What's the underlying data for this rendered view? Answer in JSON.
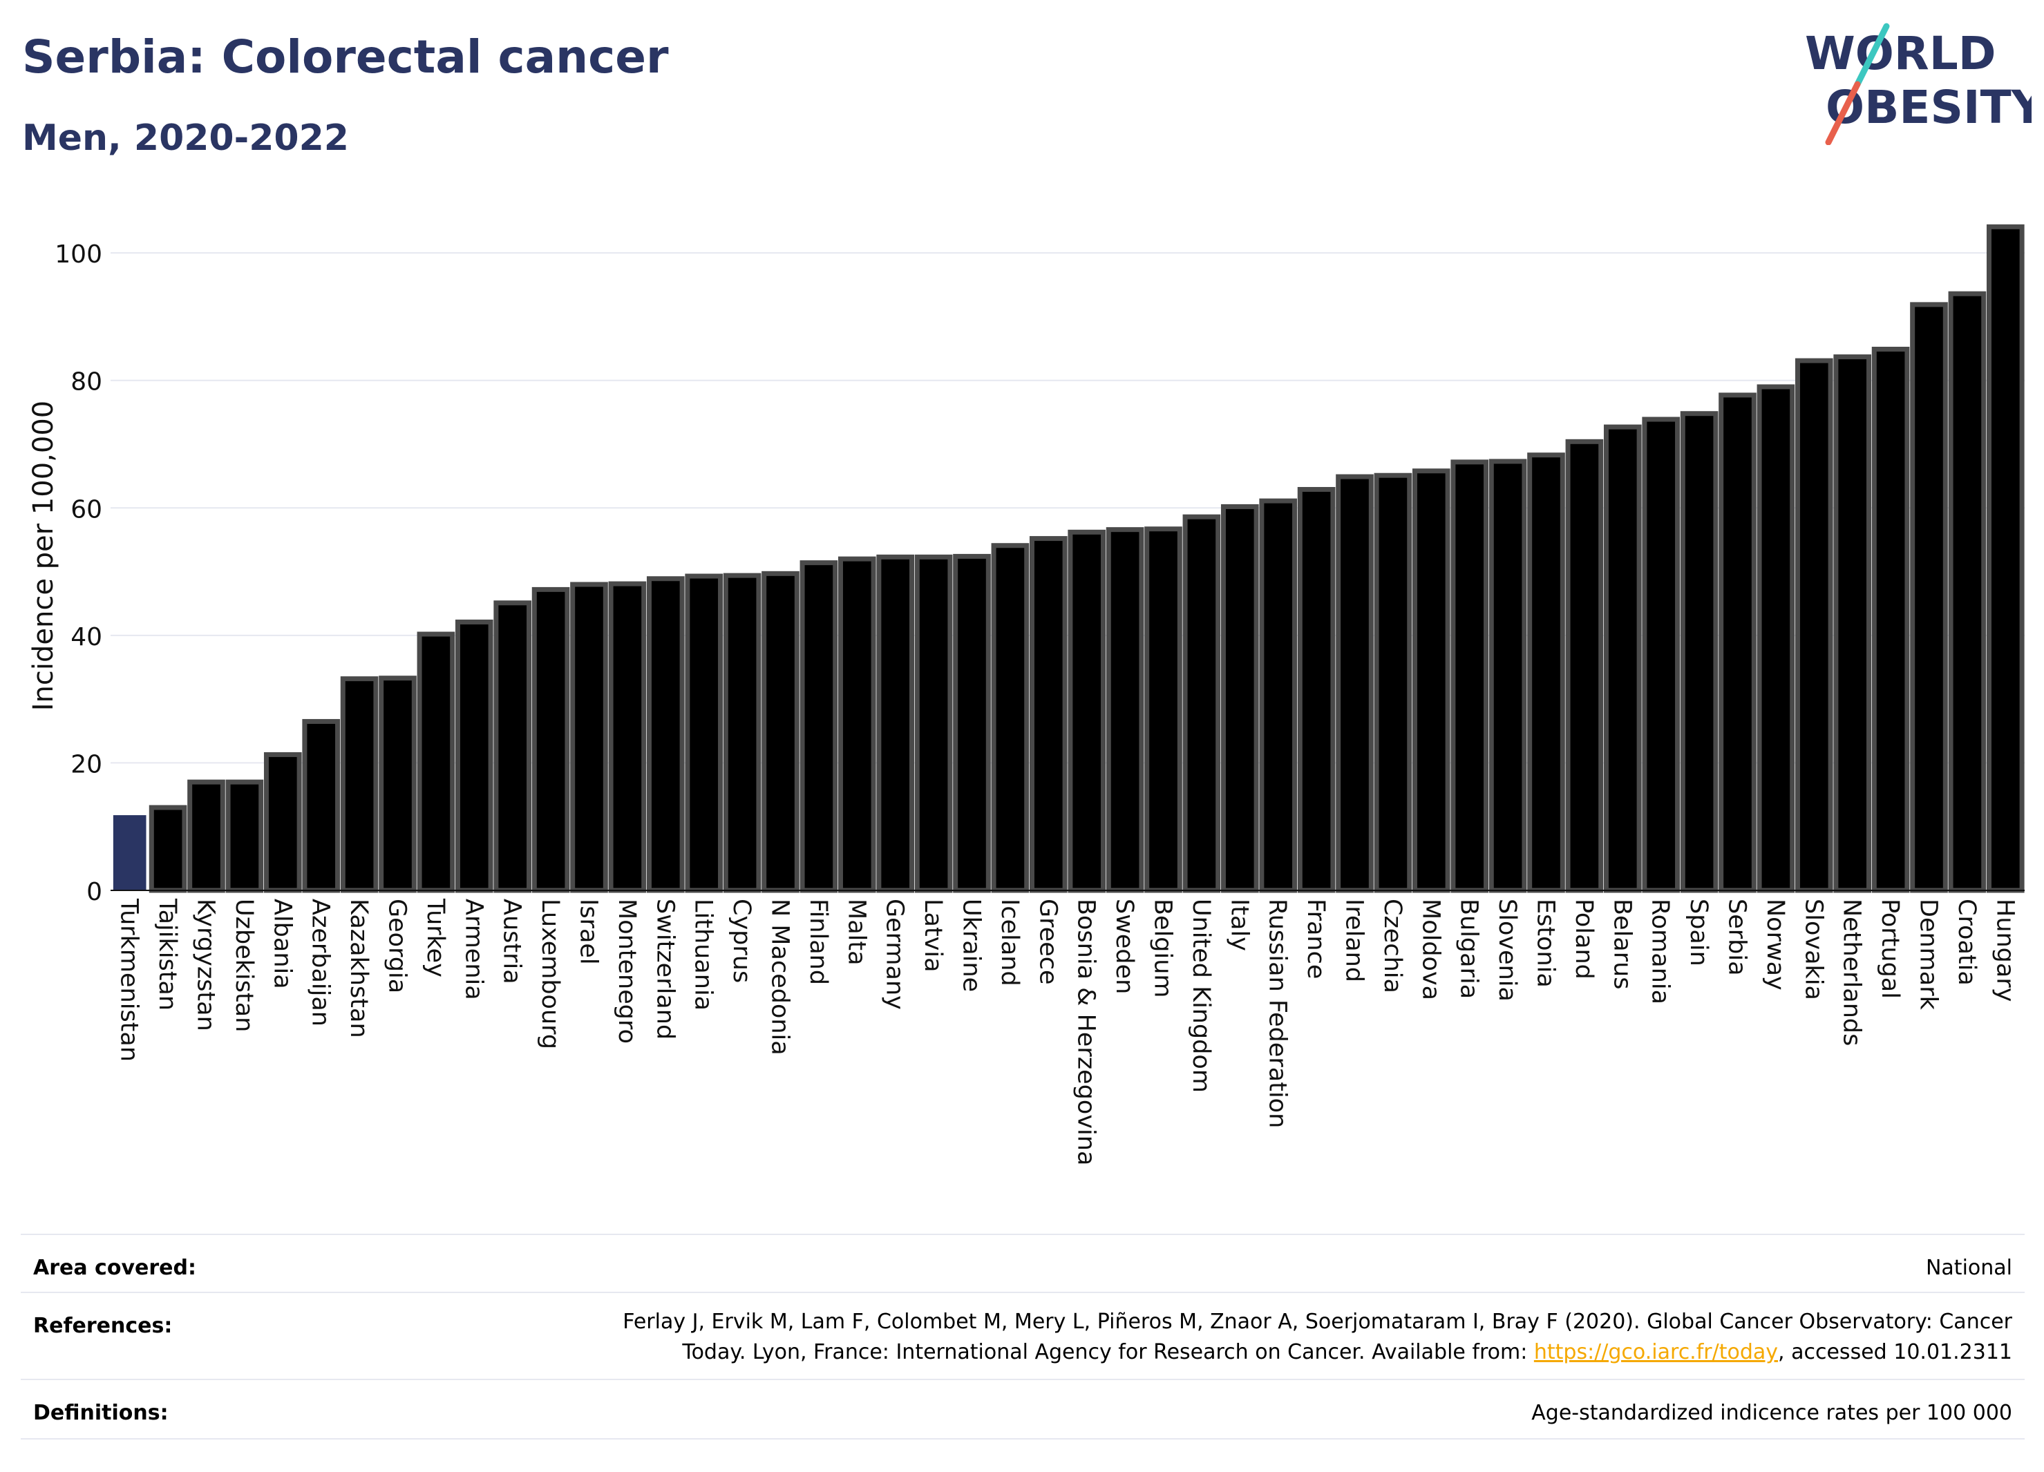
{
  "header": {
    "title": "Serbia: Colorectal cancer",
    "subtitle": "Men, 2020-2022"
  },
  "logo": {
    "line1": "WORLD",
    "line2": "OBESITY",
    "accent_colors": [
      "#3cc7c0",
      "#e8604c"
    ]
  },
  "colors": {
    "bar_fill": "#000000",
    "bar_stroke": "#4a4a4a",
    "highlight": "#2a3563",
    "grid": "#e6e8f0",
    "title": "#2a3563"
  },
  "chart_data": {
    "type": "bar",
    "title": "",
    "xlabel": "",
    "ylabel": "Incidence per 100,000",
    "ylim": [
      0,
      105
    ],
    "yticks": [
      0,
      20,
      40,
      60,
      80,
      100
    ],
    "grid": true,
    "highlight_category": "Turkmenistan",
    "categories": [
      "Turkmenistan",
      "Tajikistan",
      "Kyrgyzstan",
      "Uzbekistan",
      "Albania",
      "Azerbaijan",
      "Kazakhstan",
      "Georgia",
      "Turkey",
      "Armenia",
      "Austria",
      "Luxembourg",
      "Israel",
      "Montenegro",
      "Switzerland",
      "Lithuania",
      "Cyprus",
      "N Macedonia",
      "Finland",
      "Malta",
      "Germany",
      "Latvia",
      "Ukraine",
      "Iceland",
      "Greece",
      "Bosnia & Herzegovina",
      "Sweden",
      "Belgium",
      "United Kingdom",
      "Italy",
      "Russian Federation",
      "France",
      "Ireland",
      "Czechia",
      "Moldova",
      "Bulgaria",
      "Slovenia",
      "Estonia",
      "Poland",
      "Belarus",
      "Romania",
      "Spain",
      "Serbia",
      "Norway",
      "Slovakia",
      "Netherlands",
      "Portugal",
      "Denmark",
      "Croatia",
      "Hungary"
    ],
    "values": [
      11.8,
      13.0,
      17.0,
      17.0,
      21.3,
      26.5,
      33.2,
      33.3,
      40.2,
      42.1,
      45.1,
      47.2,
      48.0,
      48.1,
      48.9,
      49.3,
      49.4,
      49.7,
      51.4,
      52.0,
      52.3,
      52.3,
      52.4,
      54.1,
      55.2,
      56.2,
      56.6,
      56.7,
      58.6,
      60.2,
      61.1,
      62.9,
      64.9,
      65.1,
      65.8,
      67.2,
      67.3,
      68.3,
      70.4,
      72.7,
      73.9,
      74.8,
      77.7,
      79.0,
      83.1,
      83.7,
      84.9,
      91.9,
      93.6,
      104.1
    ]
  },
  "info": {
    "area_label": "Area covered:",
    "area_value": "National",
    "references_label": "References:",
    "references_line1": "Ferlay J, Ervik M, Lam F, Colombet M, Mery L, Piñeros M, Znaor A, Soerjomataram I, Bray F (2020). Global Cancer Observatory: Cancer",
    "references_line2_pre": "Today. Lyon, France: International Agency for Research on Cancer. Available from: ",
    "references_link": "https://gco.iarc.fr/today",
    "references_line2_post": ", accessed 10.01.2311",
    "definitions_label": "Definitions:",
    "definitions_value": "Age-standardized indicence rates per 100 000"
  }
}
